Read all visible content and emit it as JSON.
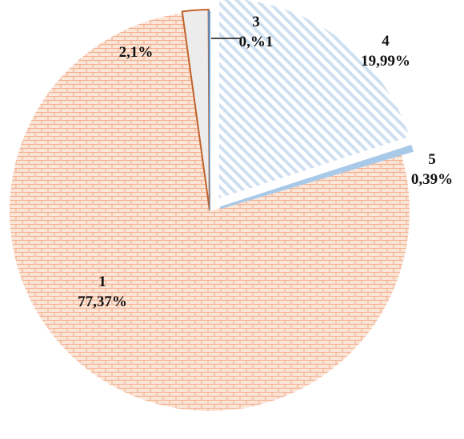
{
  "chart_data": {
    "type": "pie",
    "exploded": true,
    "slices": [
      {
        "category": "1",
        "label": "77,37%",
        "value": 77.37,
        "color": "#f6c6aa",
        "pattern": "brick"
      },
      {
        "category": "",
        "label": "2,1%",
        "value": 2.1,
        "color": "#c0622a",
        "pattern": "solid-light"
      },
      {
        "category": "3",
        "label": "0,%1",
        "value": 0.1,
        "color": "#5b8fc7",
        "pattern": "solid"
      },
      {
        "category": "4",
        "label": "19,99%",
        "value": 19.99,
        "color": "#c9d9ec",
        "pattern": "diagonal"
      },
      {
        "category": "5",
        "label": "0,39%",
        "value": 0.39,
        "color": "#9ec2e6",
        "pattern": "solid"
      }
    ]
  }
}
